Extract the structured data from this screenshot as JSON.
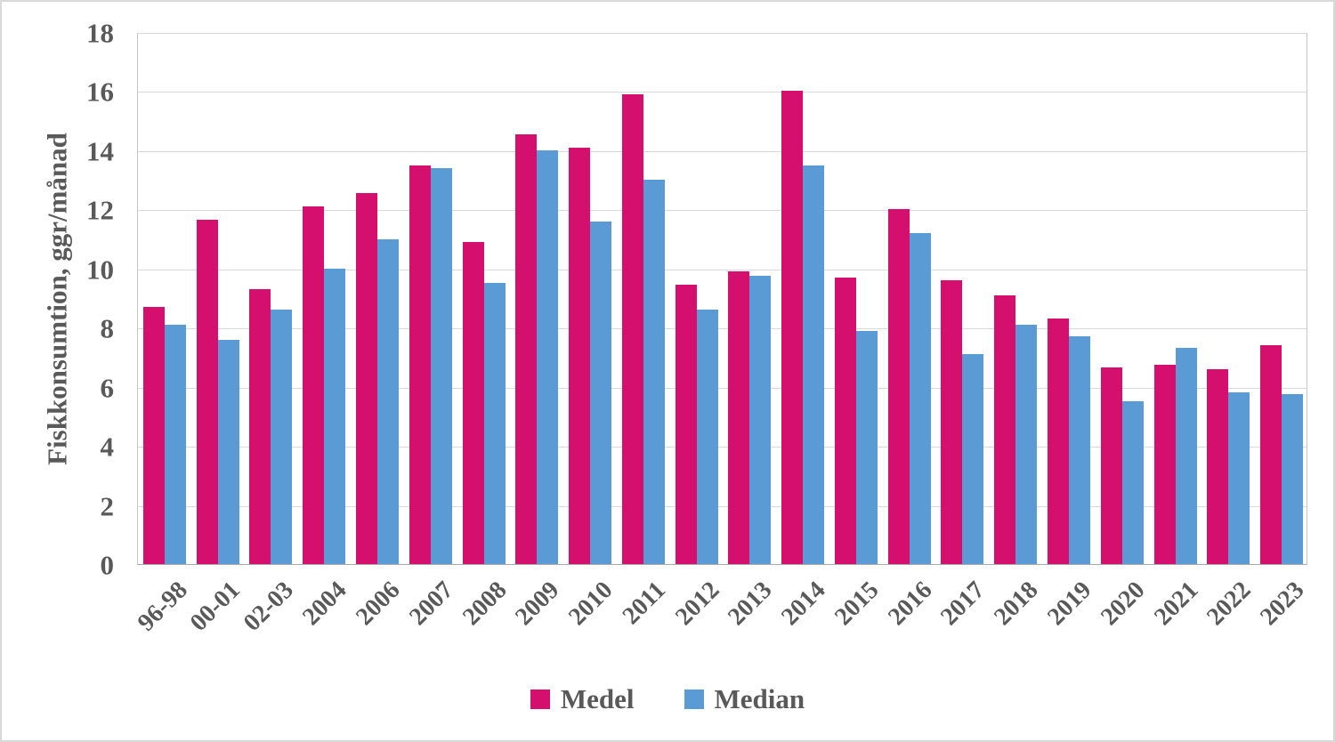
{
  "chart_data": {
    "type": "bar",
    "title": "",
    "xlabel": "",
    "ylabel": "Fiskkonsumtion, ggr/månad",
    "ylim": [
      0,
      18
    ],
    "yticks": [
      0,
      2,
      4,
      6,
      8,
      10,
      12,
      14,
      16,
      18
    ],
    "grid": "horizontal",
    "legend_position": "bottom",
    "categories": [
      "96-98",
      "00-01",
      "02-03",
      "2004",
      "2006",
      "2007",
      "2008",
      "2009",
      "2010",
      "2011",
      "2012",
      "2013",
      "2014",
      "2015",
      "2016",
      "2017",
      "2018",
      "2019",
      "2020",
      "2021",
      "2022",
      "2023"
    ],
    "series": [
      {
        "name": "Medel",
        "color": "#d40f6e",
        "values": [
          8.7,
          11.65,
          9.3,
          12.1,
          12.55,
          13.5,
          10.9,
          14.55,
          14.1,
          15.9,
          9.45,
          9.9,
          16.0,
          9.7,
          12.0,
          9.6,
          9.1,
          8.3,
          6.65,
          6.75,
          6.6,
          7.4
        ]
      },
      {
        "name": "Median",
        "color": "#5b9bd5",
        "values": [
          8.1,
          7.6,
          8.6,
          10.0,
          11.0,
          13.4,
          9.5,
          14.0,
          11.6,
          13.0,
          8.6,
          9.75,
          13.5,
          7.9,
          11.2,
          7.1,
          8.1,
          7.7,
          5.5,
          7.3,
          5.8,
          5.75
        ]
      }
    ]
  },
  "colors": {
    "axis_text": "#595959",
    "gridline": "#d9d9d9",
    "background": "#ffffff",
    "frame_border": "#d9d9d9"
  }
}
